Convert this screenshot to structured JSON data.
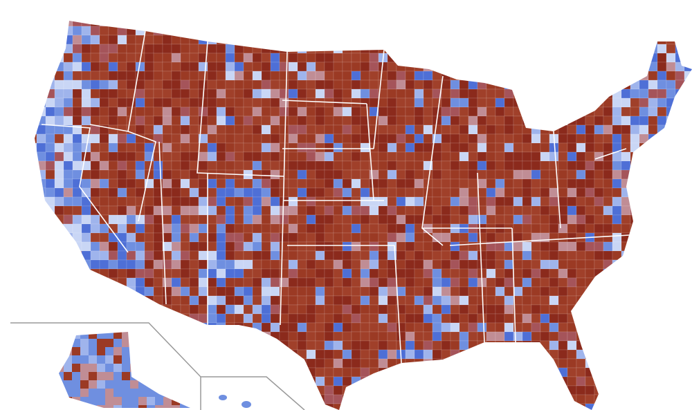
{
  "map": {
    "palette": [
      "#8b2a1c",
      "#9b3a24",
      "#a0402a",
      "#a5545a",
      "#c08d95",
      "#9fb4ec",
      "#6f8fe0",
      "#4e6fd6",
      "#c9d6f5"
    ]
  }
}
